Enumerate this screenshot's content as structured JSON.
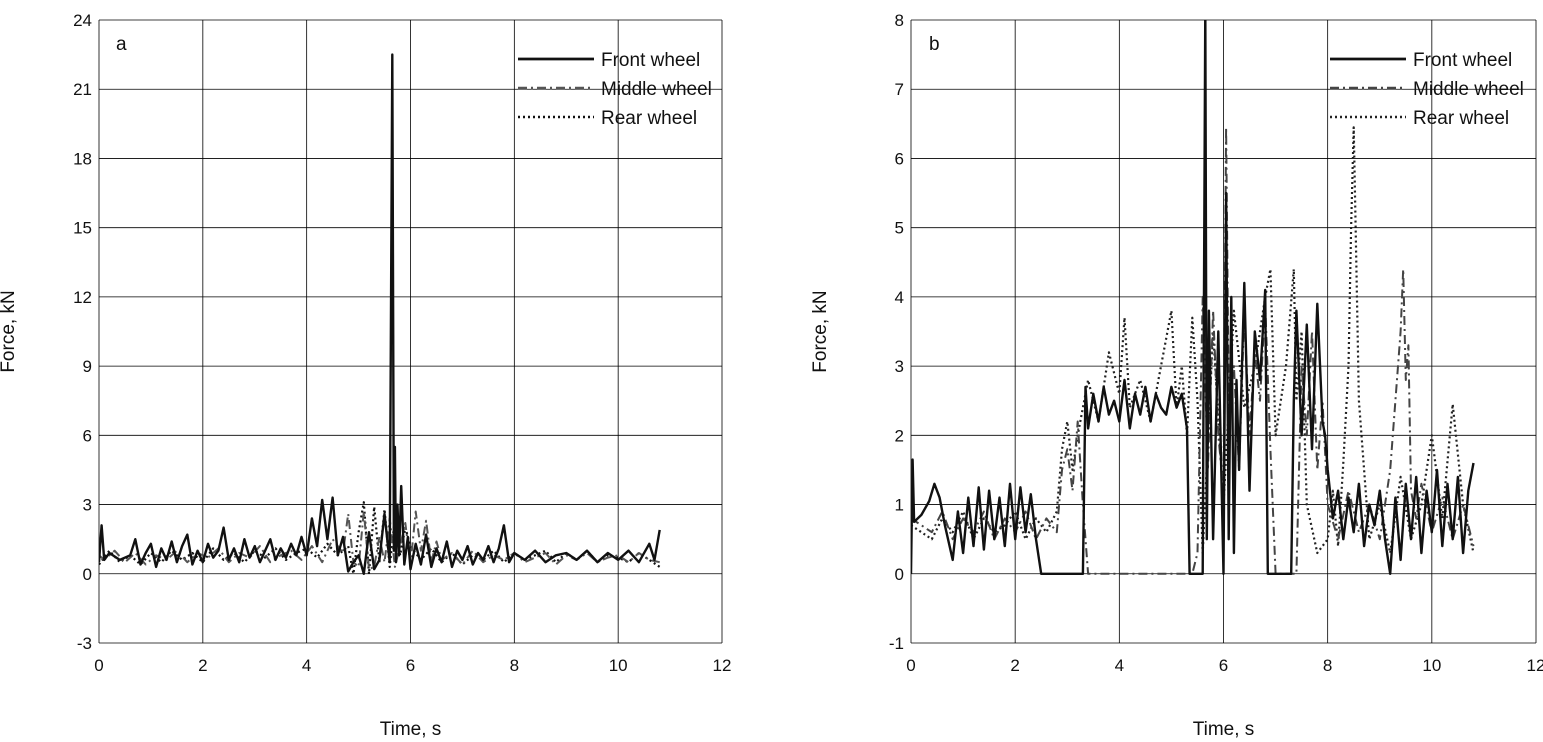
{
  "chart_data": [
    {
      "type": "line",
      "panel_label": "a",
      "xlabel": "Time, s",
      "ylabel": "Force, kN",
      "xlim": [
        0,
        12
      ],
      "ylim": [
        -3,
        24
      ],
      "xticks": [
        0,
        2,
        4,
        6,
        8,
        10,
        12
      ],
      "yticks": [
        -3,
        0,
        3,
        6,
        9,
        12,
        15,
        18,
        21,
        24
      ],
      "grid": true,
      "legend_position": "top-right",
      "series": [
        {
          "name": "Front wheel",
          "style": "solid",
          "color": "#111111",
          "x": [
            0,
            0.05,
            0.1,
            0.2,
            0.4,
            0.6,
            0.7,
            0.8,
            0.9,
            1.0,
            1.1,
            1.2,
            1.3,
            1.4,
            1.5,
            1.6,
            1.7,
            1.8,
            1.9,
            2.0,
            2.1,
            2.2,
            2.3,
            2.4,
            2.5,
            2.6,
            2.7,
            2.8,
            2.9,
            3.0,
            3.1,
            3.2,
            3.3,
            3.4,
            3.5,
            3.6,
            3.7,
            3.8,
            3.9,
            4.0,
            4.1,
            4.2,
            4.3,
            4.4,
            4.5,
            4.6,
            4.7,
            4.8,
            4.9,
            5.0,
            5.1,
            5.2,
            5.3,
            5.4,
            5.5,
            5.6,
            5.65,
            5.68,
            5.7,
            5.72,
            5.75,
            5.78,
            5.82,
            5.88,
            5.95,
            6.0,
            6.1,
            6.2,
            6.3,
            6.4,
            6.5,
            6.6,
            6.7,
            6.8,
            6.9,
            7.0,
            7.1,
            7.2,
            7.3,
            7.4,
            7.5,
            7.6,
            7.7,
            7.8,
            7.9,
            8.0,
            8.2,
            8.4,
            8.6,
            8.8,
            9.0,
            9.2,
            9.4,
            9.6,
            9.8,
            10.0,
            10.2,
            10.4,
            10.6,
            10.7,
            10.8
          ],
          "values": [
            0.5,
            2.1,
            0.6,
            0.9,
            0.6,
            0.8,
            1.5,
            0.4,
            0.9,
            1.3,
            0.3,
            1.1,
            0.6,
            1.4,
            0.5,
            1.2,
            1.7,
            0.4,
            1.0,
            0.5,
            1.3,
            0.7,
            1.0,
            2.0,
            0.6,
            1.1,
            0.5,
            1.5,
            0.7,
            1.2,
            0.5,
            1.0,
            1.5,
            0.6,
            1.1,
            0.7,
            1.3,
            0.8,
            1.6,
            0.8,
            2.4,
            1.2,
            3.2,
            1.5,
            3.3,
            0.8,
            1.6,
            0.1,
            0.5,
            0.8,
            0.0,
            1.8,
            0.2,
            0.6,
            2.6,
            0.5,
            22.5,
            1.0,
            5.5,
            0.5,
            3.0,
            0.8,
            3.8,
            0.4,
            1.6,
            0.2,
            1.3,
            0.4,
            1.7,
            0.3,
            1.1,
            0.5,
            1.4,
            0.3,
            1.0,
            0.6,
            1.2,
            0.4,
            0.9,
            0.6,
            1.2,
            0.5,
            1.1,
            2.1,
            0.5,
            0.9,
            0.6,
            1.0,
            0.5,
            0.8,
            0.9,
            0.6,
            1.0,
            0.5,
            0.9,
            0.6,
            1.0,
            0.5,
            1.3,
            0.6,
            1.9
          ]
        },
        {
          "name": "Middle wheel",
          "style": "dash-dot",
          "color": "#555555",
          "x": [
            0,
            0.1,
            0.3,
            0.5,
            0.7,
            0.9,
            1.1,
            1.3,
            1.5,
            1.7,
            1.9,
            2.1,
            2.3,
            2.5,
            2.7,
            2.9,
            3.1,
            3.3,
            3.5,
            3.7,
            3.9,
            4.1,
            4.3,
            4.5,
            4.7,
            4.8,
            4.9,
            5.0,
            5.1,
            5.2,
            5.3,
            5.4,
            5.5,
            5.6,
            5.7,
            5.8,
            5.9,
            6.0,
            6.1,
            6.2,
            6.3,
            6.4,
            6.5,
            6.6,
            6.8,
            7.0,
            7.2,
            7.4,
            7.6,
            7.8,
            8.0,
            8.2,
            8.4,
            8.6,
            8.8,
            9.0,
            9.2,
            9.4,
            9.6,
            9.8,
            10.0,
            10.2,
            10.4,
            10.6,
            10.8
          ],
          "values": [
            0.8,
            0.6,
            1.0,
            0.5,
            0.9,
            0.4,
            0.8,
            0.6,
            1.0,
            0.5,
            0.9,
            0.7,
            1.1,
            0.5,
            0.9,
            0.7,
            1.2,
            0.5,
            0.8,
            1.0,
            0.6,
            1.2,
            0.5,
            1.5,
            0.9,
            2.6,
            0.5,
            0.3,
            2.7,
            0.2,
            0.3,
            1.6,
            0.5,
            2.4,
            0.3,
            1.2,
            2.2,
            0.4,
            2.7,
            1.0,
            2.3,
            0.5,
            1.4,
            0.6,
            0.9,
            0.4,
            1.0,
            0.5,
            0.8,
            0.6,
            0.9,
            0.5,
            0.7,
            0.9,
            0.4,
            0.8,
            0.6,
            0.9,
            0.5,
            0.7,
            0.8,
            0.5,
            0.9,
            0.6,
            0.5
          ]
        },
        {
          "name": "Rear wheel",
          "style": "dotted",
          "color": "#111111",
          "x": [
            0,
            0.2,
            0.4,
            0.6,
            0.8,
            1.0,
            1.2,
            1.4,
            1.6,
            1.8,
            2.0,
            2.2,
            2.4,
            2.6,
            2.8,
            3.0,
            3.2,
            3.4,
            3.6,
            3.8,
            4.0,
            4.2,
            4.4,
            4.6,
            4.8,
            4.9,
            5.0,
            5.1,
            5.2,
            5.3,
            5.4,
            5.5,
            5.6,
            5.7,
            5.8,
            5.9,
            6.0,
            6.2,
            6.4,
            6.6,
            6.8,
            7.0,
            7.2,
            7.4,
            7.6,
            7.8,
            8.0,
            8.2,
            8.4,
            8.6,
            8.8,
            9.0,
            9.2,
            9.4,
            9.6,
            9.8,
            10.0,
            10.2,
            10.4,
            10.6,
            10.8
          ],
          "values": [
            0.4,
            1.0,
            0.5,
            0.8,
            0.4,
            0.9,
            0.5,
            1.0,
            0.6,
            0.9,
            0.5,
            1.1,
            0.6,
            0.9,
            0.5,
            1.0,
            0.7,
            1.1,
            0.6,
            0.9,
            1.1,
            0.7,
            1.3,
            0.8,
            1.2,
            0.0,
            1.8,
            3.1,
            0.0,
            2.9,
            0.5,
            2.8,
            0.3,
            2.4,
            0.8,
            2.0,
            1.2,
            0.6,
            1.1,
            0.5,
            0.9,
            0.4,
            0.8,
            0.6,
            1.0,
            0.5,
            0.9,
            0.6,
            0.8,
            1.0,
            0.5,
            0.9,
            0.6,
            1.0,
            0.5,
            0.8,
            0.7,
            0.5,
            0.9,
            0.6,
            0.3
          ]
        }
      ]
    },
    {
      "type": "line",
      "panel_label": "b",
      "xlabel": "Time, s",
      "ylabel": "Force, kN",
      "xlim": [
        0,
        12
      ],
      "ylim": [
        -1,
        8
      ],
      "xticks": [
        0,
        2,
        4,
        6,
        8,
        10,
        12
      ],
      "yticks": [
        -1,
        0,
        1,
        2,
        3,
        4,
        5,
        6,
        7,
        8
      ],
      "grid": true,
      "legend_position": "top-right",
      "series": [
        {
          "name": "Front wheel",
          "style": "solid",
          "color": "#111111",
          "x": [
            0,
            0.03,
            0.06,
            0.2,
            0.35,
            0.45,
            0.55,
            0.65,
            0.8,
            0.9,
            1.0,
            1.1,
            1.2,
            1.3,
            1.4,
            1.5,
            1.6,
            1.7,
            1.8,
            1.9,
            2.0,
            2.1,
            2.2,
            2.3,
            2.4,
            2.5,
            2.55,
            3.3,
            3.35,
            3.4,
            3.5,
            3.6,
            3.7,
            3.8,
            3.9,
            4.0,
            4.1,
            4.2,
            4.3,
            4.4,
            4.5,
            4.6,
            4.7,
            4.8,
            4.9,
            5.0,
            5.1,
            5.2,
            5.3,
            5.35,
            5.4,
            5.6,
            5.65,
            5.68,
            5.72,
            5.8,
            5.9,
            6.0,
            6.05,
            6.1,
            6.15,
            6.2,
            6.25,
            6.3,
            6.4,
            6.5,
            6.6,
            6.7,
            6.8,
            6.85,
            6.9,
            7.3,
            7.35,
            7.4,
            7.5,
            7.6,
            7.7,
            7.8,
            7.9,
            7.95,
            8.0,
            8.1,
            8.2,
            8.3,
            8.4,
            8.5,
            8.6,
            8.7,
            8.8,
            8.9,
            9.0,
            9.1,
            9.2,
            9.3,
            9.4,
            9.5,
            9.6,
            9.7,
            9.8,
            9.9,
            10.0,
            10.1,
            10.2,
            10.3,
            10.4,
            10.5,
            10.6,
            10.7,
            10.8
          ],
          "values": [
            0.0,
            1.65,
            0.75,
            0.85,
            1.05,
            1.3,
            1.1,
            0.7,
            0.2,
            0.9,
            0.3,
            1.1,
            0.4,
            1.25,
            0.35,
            1.2,
            0.5,
            1.1,
            0.4,
            1.3,
            0.5,
            1.25,
            0.6,
            1.15,
            0.5,
            0.0,
            0.0,
            0.0,
            2.7,
            2.1,
            2.6,
            2.2,
            2.7,
            2.3,
            2.5,
            2.2,
            2.8,
            2.1,
            2.6,
            2.3,
            2.7,
            2.2,
            2.6,
            2.4,
            2.3,
            2.7,
            2.4,
            2.6,
            2.1,
            0.0,
            0.0,
            0.0,
            8.2,
            0.5,
            3.8,
            0.5,
            3.5,
            0.0,
            5.5,
            0.5,
            4.0,
            0.3,
            2.8,
            1.5,
            4.2,
            1.2,
            3.5,
            2.8,
            4.1,
            0.0,
            0.0,
            0.0,
            2.5,
            3.8,
            2.0,
            3.6,
            1.8,
            3.9,
            2.2,
            2.0,
            1.5,
            0.8,
            1.2,
            0.5,
            1.1,
            0.6,
            1.3,
            0.4,
            1.0,
            0.7,
            1.2,
            0.5,
            0.0,
            1.1,
            0.2,
            1.3,
            0.5,
            1.4,
            0.3,
            1.2,
            0.6,
            1.5,
            0.4,
            1.3,
            0.5,
            1.4,
            0.3,
            1.2,
            1.6
          ]
        },
        {
          "name": "Middle wheel",
          "style": "dash-dot",
          "color": "#444444",
          "x": [
            0,
            0.2,
            0.4,
            0.6,
            0.8,
            1.0,
            1.2,
            1.4,
            1.6,
            1.8,
            2.0,
            2.2,
            2.4,
            2.6,
            2.8,
            2.9,
            3.0,
            3.1,
            3.2,
            3.3,
            3.4,
            3.6,
            4.0,
            5.0,
            5.4,
            5.5,
            5.6,
            5.7,
            5.8,
            5.9,
            6.0,
            6.05,
            6.1,
            6.2,
            6.3,
            6.4,
            6.5,
            6.6,
            6.7,
            6.8,
            6.9,
            7.0,
            7.4,
            7.5,
            7.6,
            7.7,
            7.8,
            7.9,
            8.0,
            8.2,
            8.4,
            8.6,
            8.8,
            9.0,
            9.2,
            9.3,
            9.4,
            9.45,
            9.5,
            9.55,
            9.6,
            9.7,
            9.8,
            10.0,
            10.2,
            10.4,
            10.6,
            10.8
          ],
          "values": [
            0.8,
            0.7,
            0.6,
            0.9,
            0.5,
            0.8,
            0.6,
            0.9,
            0.5,
            0.8,
            0.6,
            0.9,
            0.5,
            0.8,
            0.6,
            1.5,
            1.8,
            1.2,
            2.2,
            1.0,
            0.0,
            0.0,
            0.0,
            0.0,
            0.0,
            0.3,
            4.0,
            1.5,
            3.8,
            2.0,
            1.2,
            6.45,
            2.5,
            3.0,
            1.5,
            3.8,
            2.0,
            3.2,
            2.5,
            3.9,
            1.8,
            0.0,
            0.0,
            3.0,
            2.0,
            3.5,
            1.5,
            2.5,
            1.0,
            0.5,
            1.2,
            0.6,
            1.0,
            0.5,
            1.5,
            2.5,
            3.5,
            4.4,
            2.8,
            3.3,
            1.2,
            0.8,
            1.3,
            0.6,
            1.1,
            0.5,
            1.0,
            0.4
          ]
        },
        {
          "name": "Rear wheel",
          "style": "dotted",
          "color": "#222222",
          "x": [
            0,
            0.2,
            0.4,
            0.6,
            0.8,
            1.0,
            1.2,
            1.4,
            1.6,
            1.8,
            2.0,
            2.2,
            2.4,
            2.6,
            2.8,
            2.9,
            3.0,
            3.1,
            3.2,
            3.4,
            3.6,
            3.8,
            4.0,
            4.1,
            4.2,
            4.4,
            4.6,
            4.8,
            5.0,
            5.1,
            5.2,
            5.3,
            5.4,
            5.5,
            5.6,
            5.8,
            6.0,
            6.2,
            6.4,
            6.6,
            6.8,
            6.9,
            7.0,
            7.2,
            7.35,
            7.4,
            7.5,
            7.6,
            7.8,
            8.0,
            8.1,
            8.2,
            8.3,
            8.4,
            8.45,
            8.5,
            8.55,
            8.6,
            8.7,
            8.8,
            9.0,
            9.2,
            9.4,
            9.6,
            9.8,
            10.0,
            10.2,
            10.4,
            10.6,
            10.8
          ],
          "values": [
            0.7,
            0.6,
            0.5,
            0.8,
            0.6,
            0.9,
            0.5,
            0.8,
            0.6,
            0.7,
            0.9,
            0.5,
            0.8,
            0.6,
            0.9,
            1.8,
            2.2,
            1.5,
            2.0,
            2.8,
            2.2,
            3.2,
            2.6,
            3.7,
            2.4,
            2.8,
            2.2,
            3.0,
            3.8,
            2.4,
            3.0,
            2.0,
            3.7,
            2.5,
            0.3,
            3.5,
            1.0,
            3.8,
            2.4,
            3.0,
            4.0,
            4.4,
            2.0,
            3.0,
            4.4,
            2.5,
            3.5,
            1.0,
            0.3,
            0.5,
            1.2,
            0.4,
            1.6,
            3.0,
            5.0,
            6.45,
            4.5,
            2.5,
            1.5,
            0.5,
            1.0,
            0.3,
            1.4,
            0.5,
            1.0,
            2.0,
            0.8,
            2.45,
            1.0,
            0.3
          ]
        }
      ]
    }
  ]
}
